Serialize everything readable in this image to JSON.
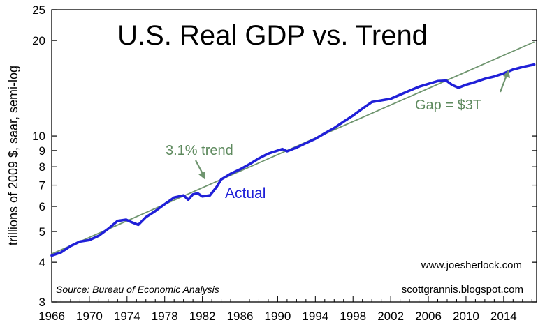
{
  "chart_data": {
    "type": "line",
    "title": "U.S. Real GDP vs. Trend",
    "ylabel": "trillions of 2009 $, saar, semi-log",
    "xlabel": "",
    "y_scale": "log",
    "ylim": [
      3,
      25
    ],
    "xlim": [
      1966,
      2017.5
    ],
    "x_ticks": [
      1966,
      1970,
      1974,
      1978,
      1982,
      1986,
      1990,
      1994,
      1998,
      2002,
      2006,
      2010,
      2014
    ],
    "x_tick_labels": [
      "1966",
      "1970",
      "1974",
      "1978",
      "1982",
      "1986",
      "1990",
      "1994",
      "1998",
      "2002",
      "2006",
      "2010",
      "2014"
    ],
    "y_ticks": [
      3,
      4,
      5,
      6,
      7,
      8,
      9,
      10,
      20,
      25
    ],
    "y_tick_labels": [
      "3",
      "4",
      "5",
      "6",
      "7",
      "8",
      "9",
      "10",
      "20",
      "25"
    ],
    "grid": false,
    "series": [
      {
        "name": "Actual",
        "color": "#2020d8",
        "x": [
          1966,
          1967,
          1968,
          1969,
          1970,
          1971,
          1972,
          1973,
          1973.9,
          1974.5,
          1975.2,
          1976,
          1977,
          1978,
          1979,
          1980,
          1980.5,
          1981,
          1981.5,
          1982,
          1982.8,
          1983.5,
          1984,
          1985,
          1986,
          1987,
          1988,
          1989,
          1990,
          1990.5,
          1991,
          1992,
          1993,
          1994,
          1995,
          1996,
          1997,
          1998,
          1999,
          2000,
          2001,
          2002,
          2003,
          2004,
          2005,
          2006,
          2007,
          2007.9,
          2008.5,
          2009.2,
          2010,
          2011,
          2012,
          2013,
          2014,
          2015,
          2016,
          2017.25
        ],
        "y": [
          4.2,
          4.3,
          4.5,
          4.65,
          4.7,
          4.85,
          5.1,
          5.4,
          5.45,
          5.35,
          5.25,
          5.55,
          5.8,
          6.1,
          6.4,
          6.5,
          6.3,
          6.55,
          6.6,
          6.45,
          6.5,
          6.9,
          7.3,
          7.6,
          7.85,
          8.15,
          8.5,
          8.8,
          9.0,
          9.1,
          8.95,
          9.2,
          9.5,
          9.8,
          10.2,
          10.6,
          11.1,
          11.6,
          12.2,
          12.8,
          12.95,
          13.1,
          13.5,
          13.9,
          14.3,
          14.6,
          14.9,
          14.95,
          14.5,
          14.2,
          14.5,
          14.8,
          15.15,
          15.4,
          15.75,
          16.2,
          16.5,
          16.8
        ]
      },
      {
        "name": "3.1% trend",
        "color": "#6f956f",
        "x": [
          1966,
          2017.25
        ],
        "y": [
          4.25,
          19.8
        ]
      }
    ],
    "annotations": [
      {
        "text": "Actual",
        "color": "#2020d8"
      },
      {
        "text": "3.1% trend",
        "color": "#5e8a5e"
      },
      {
        "text": "Gap = $3T",
        "color": "#5e8a5e"
      }
    ],
    "source": "Source:  Bureau of Economic Analysis",
    "credits": [
      "www.joesherlock.com",
      "scottgrannis.blogspot.com"
    ]
  }
}
